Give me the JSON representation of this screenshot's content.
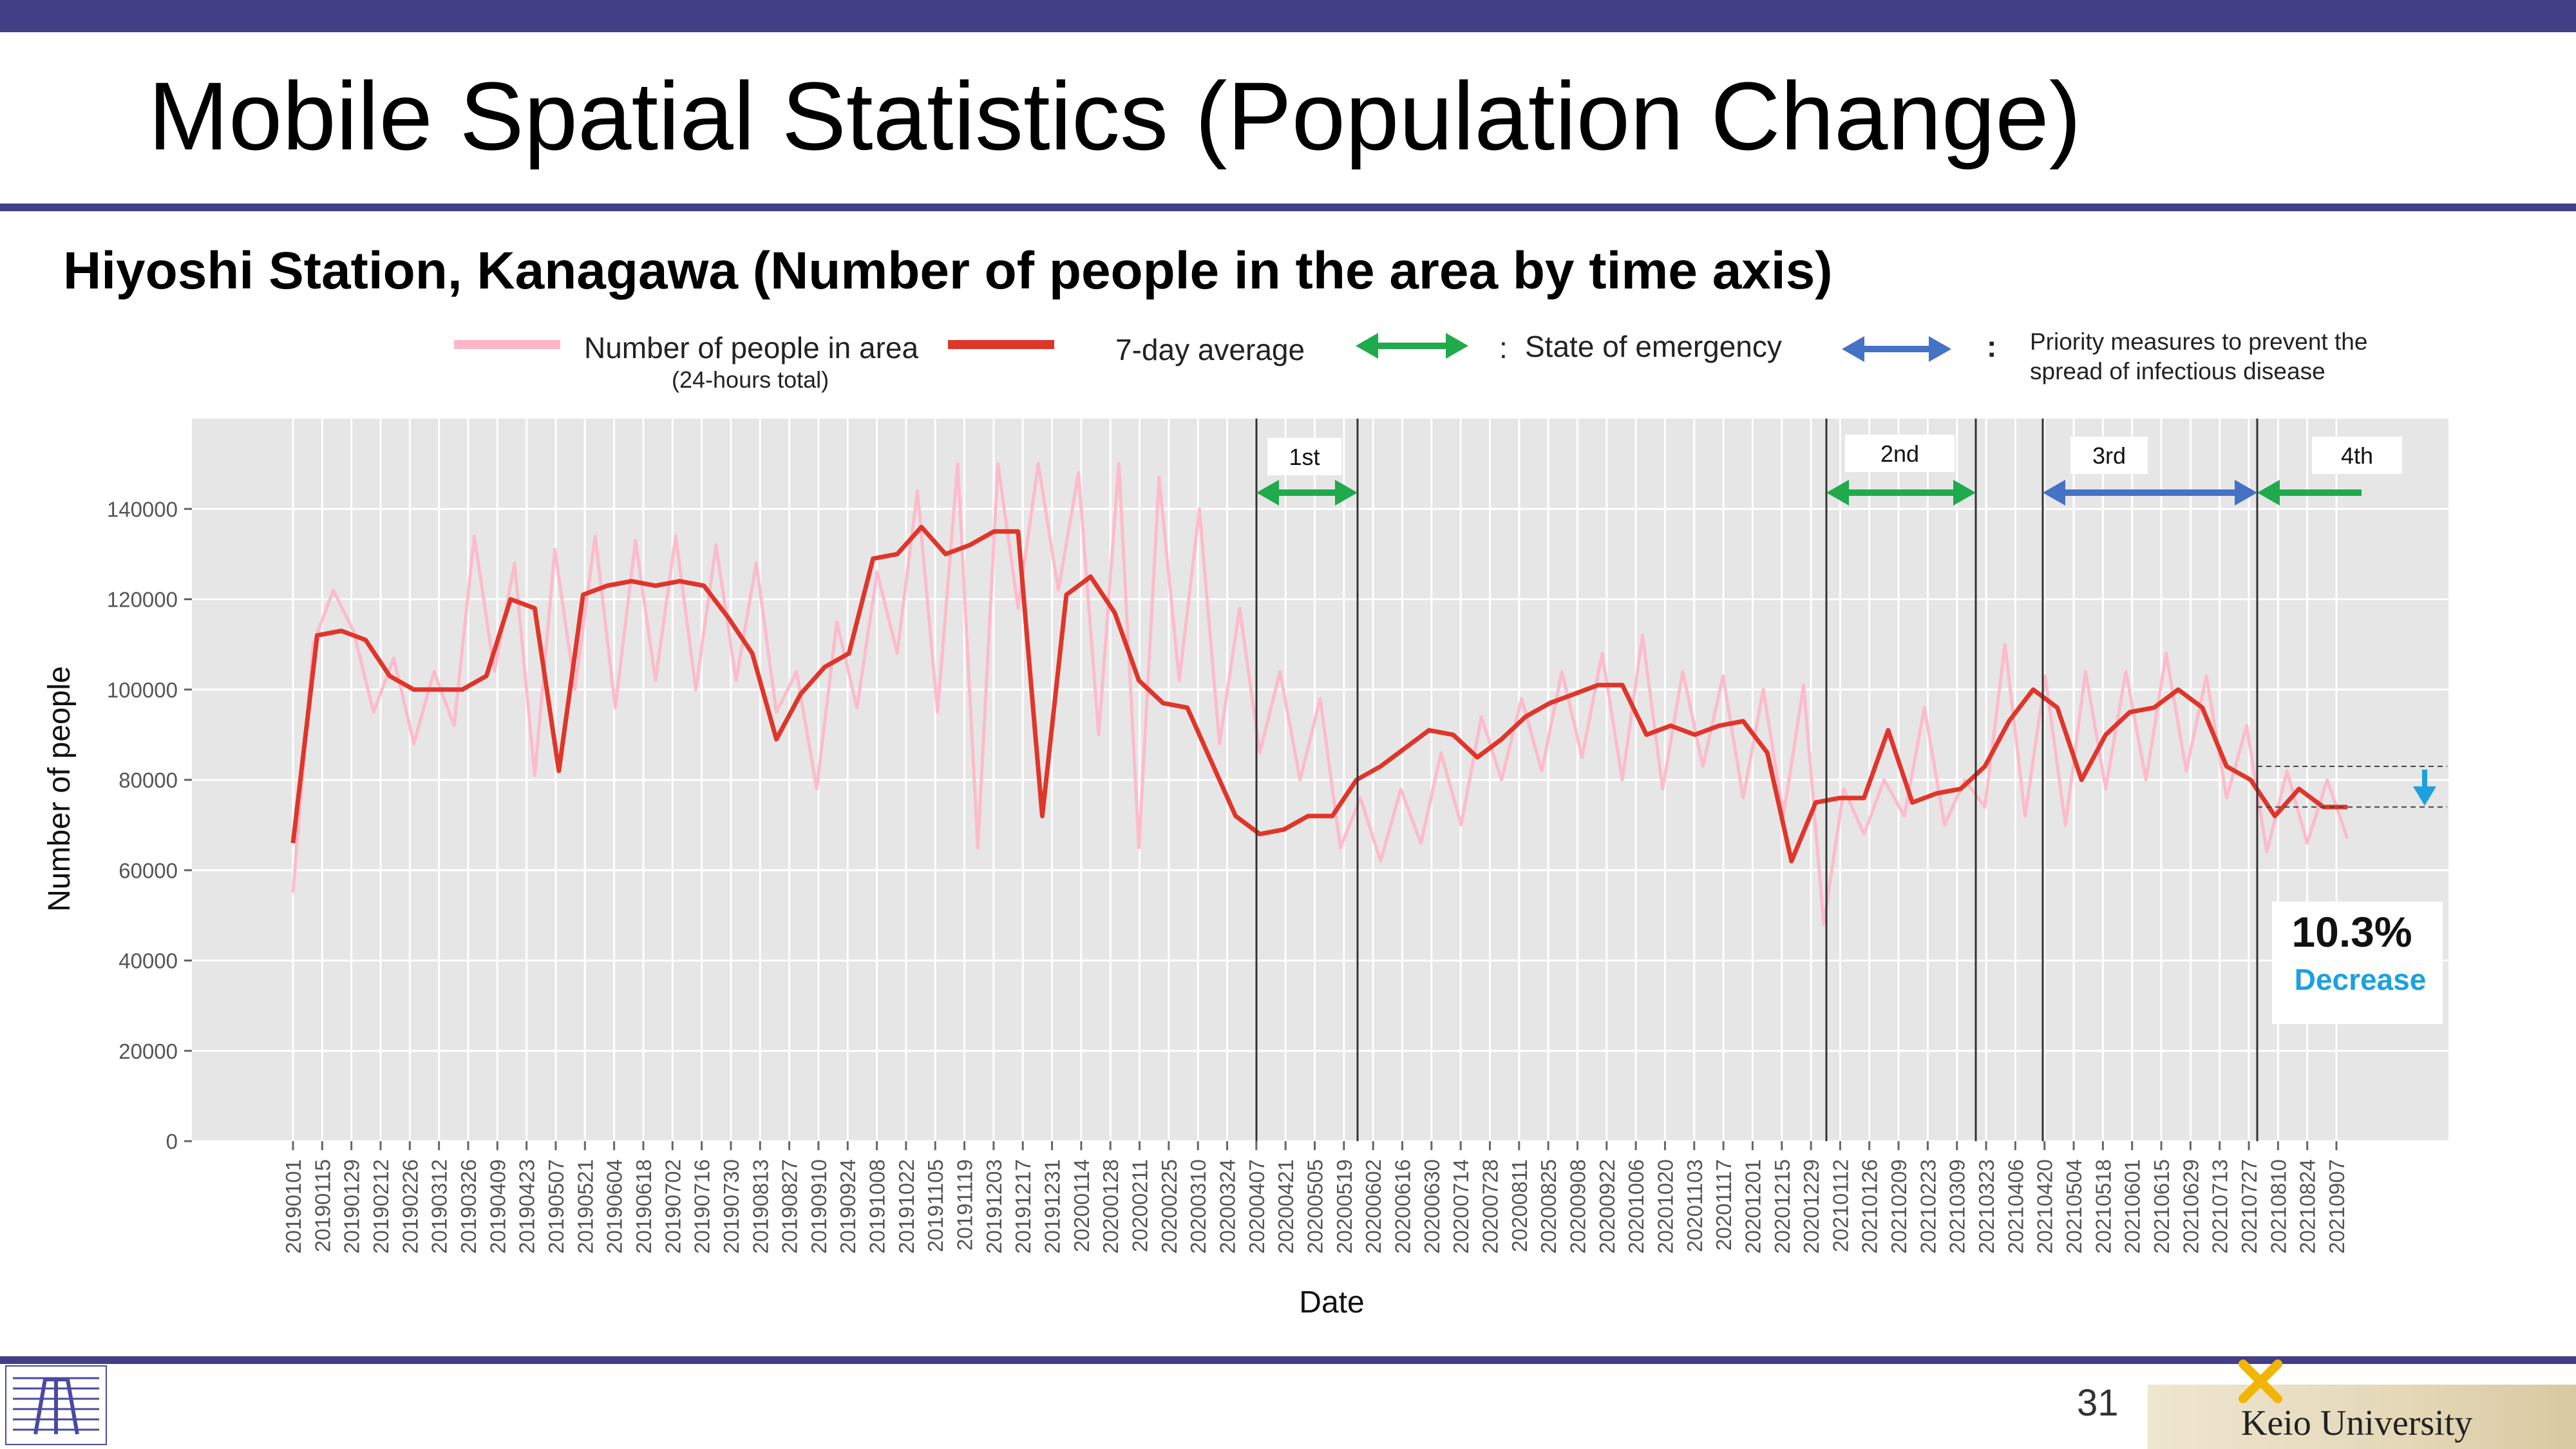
{
  "slide": {
    "title": "Mobile Spatial Statistics (Population Change)",
    "subtitle": "Hiyoshi Station, Kanagawa (Number of people in the area by time axis)",
    "page_number": "31",
    "university": "Keio University"
  },
  "legend": {
    "daily_label": "Number of people in area",
    "daily_note": "(24-hours total)",
    "avg_label": "7-day average",
    "emergency_label": "State of emergency",
    "priority_label_1": "Priority measures to prevent the",
    "priority_label_2": "spread of infectious disease",
    "separator": ":"
  },
  "colors": {
    "accent": "#433f87",
    "daily": "#ffb6c9",
    "average": "#e0352a",
    "emergency": "#1faa4c",
    "priority": "#4472c4",
    "decrease": "#1ca0e0",
    "plot_bg": "#e6e6e6"
  },
  "chart_data": {
    "type": "line",
    "xlabel": "Date",
    "ylabel": "Number of people",
    "ylim": [
      0,
      160000
    ],
    "yticks": [
      0,
      20000,
      40000,
      60000,
      80000,
      100000,
      120000,
      140000
    ],
    "grid": true,
    "x_tick_labels": [
      "20190101",
      "20190115",
      "20190129",
      "20190212",
      "20190226",
      "20190312",
      "20190326",
      "20190409",
      "20190423",
      "20190507",
      "20190521",
      "20190604",
      "20190618",
      "20190702",
      "20190716",
      "20190730",
      "20190813",
      "20190827",
      "20190910",
      "20190924",
      "20191008",
      "20191022",
      "20191105",
      "20191119",
      "20191203",
      "20191217",
      "20191231",
      "20200114",
      "20200128",
      "20200211",
      "20200225",
      "20200310",
      "20200324",
      "20200407",
      "20200421",
      "20200505",
      "20200519",
      "20200602",
      "20200616",
      "20200630",
      "20200714",
      "20200728",
      "20200811",
      "20200825",
      "20200908",
      "20200922",
      "20201006",
      "20201020",
      "20201103",
      "20201117",
      "20201201",
      "20201215",
      "20201229",
      "20210112",
      "20210126",
      "20210209",
      "20210223",
      "20210309",
      "20210323",
      "20210406",
      "20210420",
      "20210504",
      "20210518",
      "20210601",
      "20210615",
      "20210629",
      "20210713",
      "20210727",
      "20210810",
      "20210824",
      "20210907"
    ],
    "series": [
      {
        "name": "7-day average",
        "values": [
          66000,
          112000,
          113000,
          111000,
          103000,
          100000,
          100000,
          100000,
          103000,
          120000,
          118000,
          82000,
          121000,
          123000,
          124000,
          123000,
          124000,
          123000,
          116000,
          108000,
          89000,
          99000,
          105000,
          108000,
          129000,
          130000,
          136000,
          130000,
          132000,
          135000,
          135000,
          72000,
          121000,
          125000,
          117000,
          102000,
          97000,
          96000,
          84000,
          72000,
          68000,
          69000,
          72000,
          72000,
          80000,
          83000,
          87000,
          91000,
          90000,
          85000,
          89000,
          94000,
          97000,
          99000,
          101000,
          101000,
          90000,
          92000,
          90000,
          92000,
          93000,
          86000,
          62000,
          75000,
          76000,
          76000,
          91000,
          75000,
          77000,
          78000,
          83000,
          93000,
          100000,
          96000,
          80000,
          90000,
          95000,
          96000,
          100000,
          96000,
          83000,
          80000,
          72000,
          78000,
          74000,
          74000
        ]
      },
      {
        "name": "Number of people in area",
        "values": [
          55000,
          110000,
          122000,
          113000,
          95000,
          107000,
          88000,
          104000,
          92000,
          134000,
          104000,
          128000,
          81000,
          131000,
          100000,
          134000,
          96000,
          133000,
          102000,
          134000,
          100000,
          132000,
          102000,
          128000,
          95000,
          104000,
          78000,
          115000,
          96000,
          126000,
          108000,
          144000,
          95000,
          150000,
          65000,
          150000,
          118000,
          150000,
          122000,
          148000,
          90000,
          150000,
          65000,
          147000,
          102000,
          140000,
          88000,
          118000,
          86000,
          104000,
          80000,
          98000,
          65000,
          76000,
          62000,
          78000,
          66000,
          86000,
          70000,
          94000,
          80000,
          98000,
          82000,
          104000,
          85000,
          108000,
          80000,
          112000,
          78000,
          104000,
          83000,
          103000,
          76000,
          100000,
          72000,
          101000,
          48000,
          78000,
          68000,
          80000,
          72000,
          96000,
          70000,
          80000,
          74000,
          110000,
          72000,
          103000,
          70000,
          104000,
          78000,
          104000,
          80000,
          108000,
          82000,
          103000,
          76000,
          92000,
          64000,
          82000,
          66000,
          80000,
          67000
        ]
      }
    ],
    "periods": [
      {
        "label": "1st",
        "type": "State of emergency"
      },
      {
        "label": "2nd",
        "type": "State of emergency"
      },
      {
        "label": "3rd",
        "type": "Priority measures to prevent the spread of infectious disease"
      },
      {
        "label": "4th",
        "type": "State of emergency"
      }
    ],
    "annotations": {
      "decrease_value": "10.3%",
      "decrease_label": "Decrease"
    }
  }
}
